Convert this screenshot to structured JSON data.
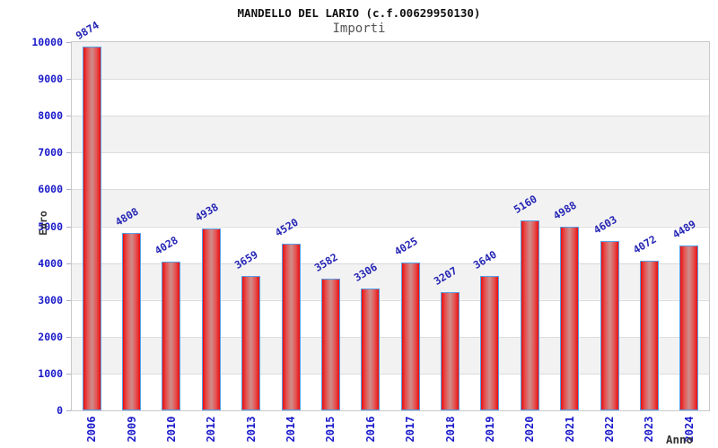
{
  "header": {
    "title": "MANDELLO DEL LARIO (c.f.00629950130)",
    "subtitle": "Importi"
  },
  "axes": {
    "y_title": "Euro",
    "x_title": "Anno"
  },
  "chart_data": {
    "type": "bar",
    "title": "MANDELLO DEL LARIO (c.f.00629950130)",
    "subtitle": "Importi",
    "xlabel": "Anno",
    "ylabel": "Euro",
    "categories": [
      "2006",
      "2009",
      "2010",
      "2012",
      "2013",
      "2014",
      "2015",
      "2016",
      "2017",
      "2018",
      "2019",
      "2020",
      "2021",
      "2022",
      "2023",
      "2024"
    ],
    "values": [
      9874,
      4808,
      4028,
      4938,
      3659,
      4520,
      3582,
      3306,
      4025,
      3207,
      3640,
      5160,
      4988,
      4603,
      4072,
      4489
    ],
    "ylim": [
      0,
      10000
    ],
    "ytick_interval": 1000,
    "legend": "none",
    "grid": "alternating horizontal bands with light gridlines every 1000",
    "value_labels": "above each bar, rotated ~31deg, blue",
    "colors": {
      "bar_fill_edge": "#e90f0f",
      "bar_fill_center": "#cf8e8c",
      "bar_border": "#58a0e8",
      "value_label": "#2525b5",
      "axis_tick_text": "#1a1aca",
      "band_gray": "#f2f2f2",
      "band_white": "#ffffff",
      "gridline": "#dcdcdc",
      "plot_border": "#c9c9c9",
      "axis_title_text": "#333333",
      "title_text": "#101010",
      "subtitle_text": "#555555"
    }
  }
}
